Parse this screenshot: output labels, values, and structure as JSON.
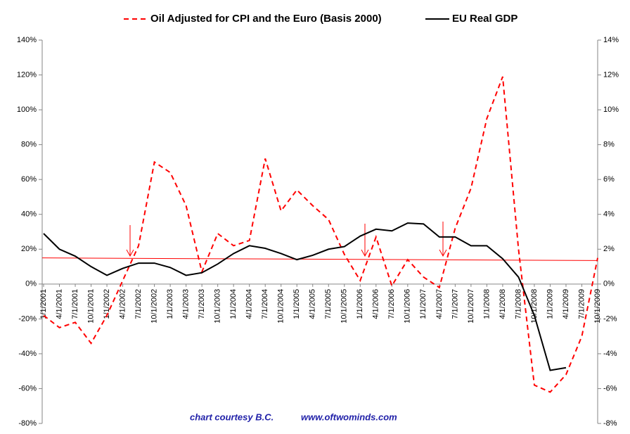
{
  "chart_data": {
    "type": "line",
    "categories": [
      "1/1/2001",
      "4/1/2001",
      "7/1/2001",
      "10/1/2001",
      "1/1/2002",
      "4/1/2002",
      "7/1/2002",
      "10/1/2002",
      "1/1/2003",
      "4/1/2003",
      "7/1/2003",
      "10/1/2003",
      "1/1/2004",
      "4/1/2004",
      "7/1/2004",
      "10/1/2004",
      "1/1/2005",
      "4/1/2005",
      "7/1/2005",
      "10/1/2005",
      "1/1/2006",
      "4/1/2006",
      "7/1/2006",
      "10/1/2006",
      "1/1/2007",
      "4/1/2007",
      "7/1/2007",
      "10/1/2007",
      "1/1/2008",
      "4/1/2008",
      "7/1/2008",
      "10/1/2008",
      "1/1/2009",
      "4/1/2009",
      "7/1/2009",
      "10/1/2009"
    ],
    "series": [
      {
        "name": "Oil Adjusted for CPI and the Euro (Basis 2000)",
        "color": "#ff0000",
        "dashed": true,
        "axis": "y",
        "values": [
          -18,
          -25,
          -22,
          -34,
          -18,
          2,
          22,
          70,
          64,
          45,
          7,
          29,
          22,
          25,
          72,
          42,
          54,
          45,
          37,
          17,
          2,
          27,
          -1,
          14,
          4,
          -2,
          32,
          55,
          95,
          119,
          20,
          -58,
          -62,
          -52,
          -30,
          15
        ]
      },
      {
        "name": "EU Real GDP",
        "color": "#000000",
        "dashed": false,
        "axis": "y2",
        "values": [
          2.9,
          2.0,
          1.6,
          1.0,
          0.5,
          0.9,
          1.2,
          1.2,
          0.95,
          0.5,
          0.65,
          1.15,
          1.75,
          2.2,
          2.05,
          1.75,
          1.4,
          1.65,
          2.0,
          2.15,
          2.75,
          3.15,
          3.05,
          3.5,
          3.45,
          2.7,
          2.7,
          2.2,
          2.2,
          1.45,
          0.4,
          -1.8,
          -4.95,
          -4.8,
          null,
          null
        ]
      }
    ],
    "reference_line": {
      "color": "#ff0000",
      "start": 15,
      "end": 13.5
    },
    "ylim": [
      -80,
      140
    ],
    "yticks": [
      {
        "value": -80,
        "label": "-80%"
      },
      {
        "value": -60,
        "label": "-60%"
      },
      {
        "value": -40,
        "label": "-40%"
      },
      {
        "value": -20,
        "label": "-20%"
      },
      {
        "value": 0,
        "label": "0%"
      },
      {
        "value": 20,
        "label": "20%"
      },
      {
        "value": 40,
        "label": "40%"
      },
      {
        "value": 60,
        "label": "60%"
      },
      {
        "value": 80,
        "label": "80%"
      },
      {
        "value": 100,
        "label": "100%"
      },
      {
        "value": 120,
        "label": "120%"
      },
      {
        "value": 140,
        "label": "140%"
      }
    ],
    "y2lim": [
      -8,
      14
    ],
    "y2ticks": [
      {
        "value": -8,
        "label": "-8%"
      },
      {
        "value": -6,
        "label": "-6%"
      },
      {
        "value": -4,
        "label": "-4%"
      },
      {
        "value": -2,
        "label": "-2%"
      },
      {
        "value": 0,
        "label": "0%"
      },
      {
        "value": 2,
        "label": "2%"
      },
      {
        "value": 4,
        "label": "4%"
      },
      {
        "value": 6,
        "label": "6%"
      },
      {
        "value": 8,
        "label": "8%"
      },
      {
        "value": 10,
        "label": "10%"
      },
      {
        "value": 12,
        "label": "12%"
      },
      {
        "value": 14,
        "label": "14%"
      }
    ],
    "annotations": [
      "chart courtesy B.C.",
      "www.oftwominds.com"
    ],
    "grid": false,
    "legend": "top"
  }
}
